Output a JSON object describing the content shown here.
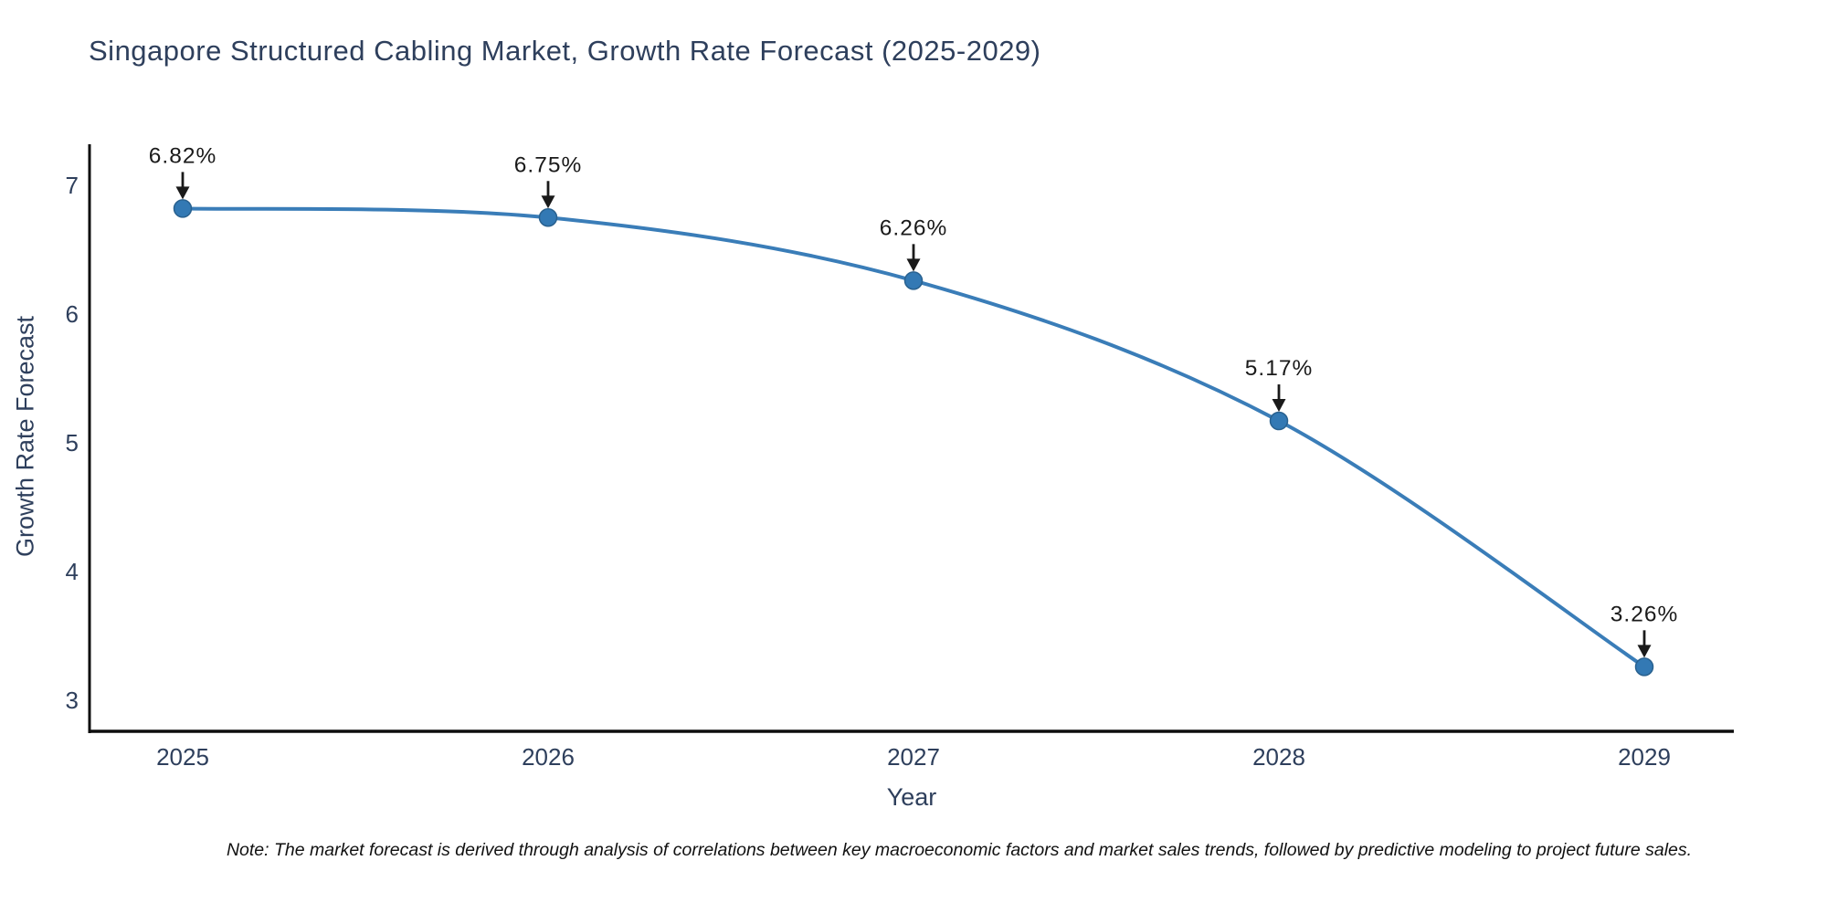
{
  "title": "Singapore Structured Cabling Market, Growth Rate Forecast (2025-2029)",
  "note": "Note: The market forecast is derived through analysis of correlations between key macroeconomic factors and market sales trends, followed by predictive modeling to project future sales.",
  "chart_data": {
    "type": "line",
    "title": "Singapore Structured Cabling Market, Growth Rate Forecast (2025-2029)",
    "x": [
      2025,
      2026,
      2027,
      2028,
      2029
    ],
    "values": [
      6.82,
      6.75,
      6.26,
      5.17,
      3.26
    ],
    "point_labels": [
      "6.82%",
      "6.75%",
      "6.26%",
      "5.17%",
      "3.26%"
    ],
    "xlabel": "Year",
    "ylabel": "Growth Rate Forecast",
    "yticks": [
      3,
      4,
      5,
      6,
      7
    ],
    "ylim": [
      2.75,
      7.32
    ],
    "grid": false,
    "legend": false,
    "annotation_style": "value label with downward black arrow above each point",
    "colors": {
      "line": "#3a7db8",
      "marker": "#3379b4",
      "marker_edge": "#29618f",
      "axis": "#0d0d0d",
      "tick_text": "#2e3f5c",
      "annotation_text": "#1a1a1a",
      "title_text": "#2e3f5c"
    }
  }
}
